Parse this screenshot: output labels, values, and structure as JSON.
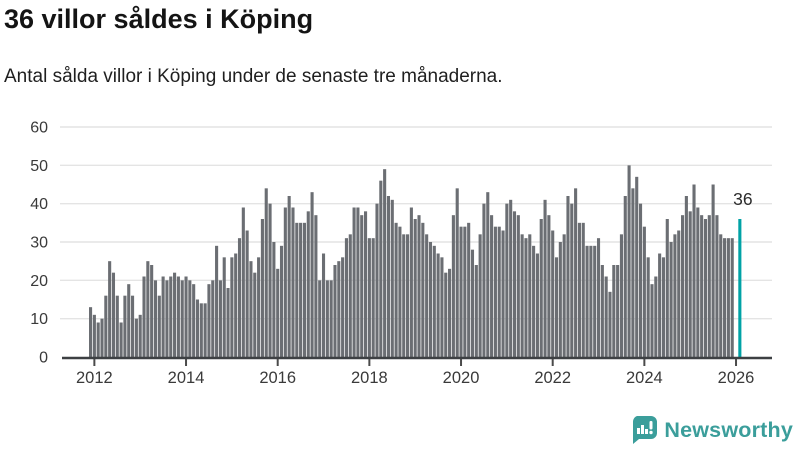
{
  "header": {
    "title": "36 villor såldes i Köping",
    "subtitle": "Antal sålda villor i Köping under de senaste tre månaderna."
  },
  "chart_data": {
    "type": "bar",
    "title": "36 villor såldes i Köping",
    "subtitle": "Antal sålda villor i Köping under de senaste tre månaderna.",
    "xlabel": "",
    "ylabel": "",
    "ylim": [
      0,
      60
    ],
    "yticks": [
      0,
      10,
      20,
      30,
      40,
      50,
      60
    ],
    "year_ticks": [
      2012,
      2014,
      2016,
      2018,
      2020,
      2022,
      2024,
      2026
    ],
    "frequency": "monthly",
    "start": "2011-12",
    "grid": "horizontal",
    "values": [
      13,
      11,
      9,
      10,
      16,
      25,
      22,
      16,
      9,
      16,
      19,
      16,
      10,
      11,
      21,
      25,
      24,
      20,
      16,
      21,
      20,
      21,
      22,
      21,
      20,
      21,
      20,
      19,
      15,
      14,
      14,
      19,
      20,
      29,
      20,
      26,
      18,
      26,
      27,
      31,
      39,
      33,
      25,
      22,
      26,
      36,
      44,
      40,
      30,
      23,
      29,
      39,
      42,
      39,
      35,
      35,
      35,
      38,
      43,
      37,
      20,
      27,
      20,
      20,
      24,
      25,
      26,
      31,
      32,
      39,
      39,
      37,
      38,
      31,
      31,
      40,
      46,
      49,
      42,
      41,
      35,
      34,
      32,
      32,
      39,
      36,
      37,
      35,
      32,
      30,
      29,
      27,
      26,
      22,
      23,
      37,
      44,
      34,
      34,
      35,
      28,
      24,
      32,
      40,
      43,
      37,
      34,
      34,
      33,
      40,
      41,
      38,
      37,
      32,
      31,
      32,
      29,
      27,
      36,
      41,
      37,
      33,
      26,
      30,
      32,
      42,
      40,
      44,
      35,
      35,
      29,
      29,
      29,
      31,
      24,
      21,
      17,
      24,
      24,
      32,
      42,
      50,
      44,
      47,
      40,
      34,
      26,
      19,
      21,
      27,
      26,
      36,
      30,
      32,
      33,
      37,
      42,
      38,
      45,
      39,
      37,
      36,
      37,
      45,
      37,
      32,
      31,
      31,
      31,
      null,
      36
    ],
    "highlight_index": 170,
    "highlight_value": 36,
    "highlight_label": "36",
    "colors": {
      "bar": "#6b6e73",
      "highlight": "#00a2a6",
      "grid": "#e4e4e4",
      "axis_line": "#3d4043",
      "tick": "#4a4a4a",
      "text": "#3a3a3a",
      "annotation": "#2b2b2b"
    }
  },
  "footer": {
    "brand": "Newsworthy",
    "logo_icon": "newsworthy-speech-bubble-chart-icon",
    "brand_color": "#3b9e9b"
  }
}
